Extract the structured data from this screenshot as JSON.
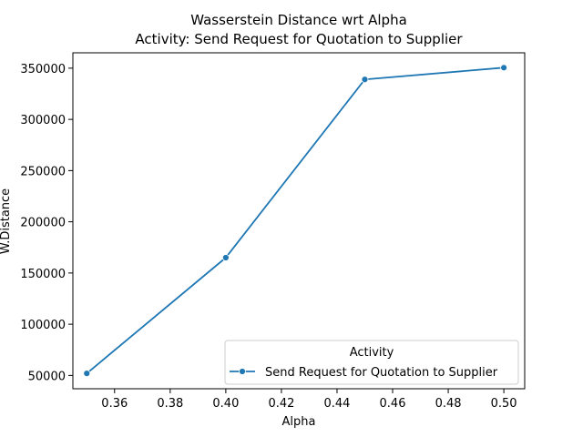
{
  "chart_data": {
    "type": "line",
    "title": "Wasserstein Distance wrt Alpha",
    "subtitle": "Activity: Send Request for Quotation to Supplier",
    "xlabel": "Alpha",
    "ylabel": "W.Distance",
    "xlim": [
      0.345,
      0.5075
    ],
    "ylim": [
      37000,
      365000
    ],
    "xticks": [
      0.36,
      0.38,
      0.4,
      0.42,
      0.44,
      0.46,
      0.48,
      0.5
    ],
    "xtick_labels": [
      "0.36",
      "0.38",
      "0.40",
      "0.42",
      "0.44",
      "0.46",
      "0.48",
      "0.50"
    ],
    "yticks": [
      50000,
      100000,
      150000,
      200000,
      250000,
      300000,
      350000
    ],
    "ytick_labels": [
      "50000",
      "100000",
      "150000",
      "200000",
      "250000",
      "300000",
      "350000"
    ],
    "grid": false,
    "legend": {
      "title": "Activity",
      "placement": "lower right"
    },
    "series": [
      {
        "name": "Send Request for Quotation to Supplier",
        "color": "#1f77b4",
        "marker": "circle",
        "x": [
          0.35,
          0.4,
          0.45,
          0.5
        ],
        "y": [
          52000,
          165000,
          339000,
          350500
        ]
      }
    ]
  }
}
